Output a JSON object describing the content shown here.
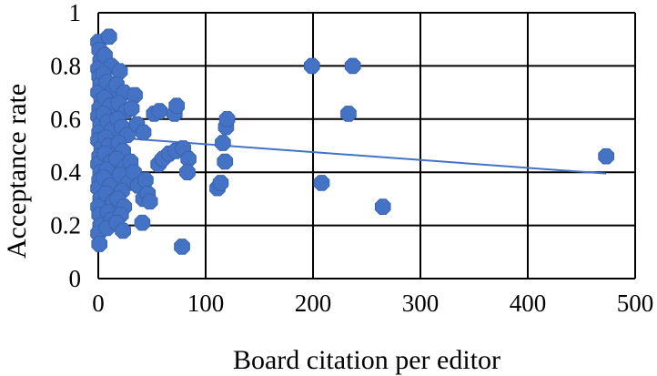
{
  "chart_data": {
    "type": "scatter",
    "title": "",
    "xlabel": "Board citation per editor",
    "ylabel": "Acceptance rate",
    "xlim": [
      0,
      500
    ],
    "ylim": [
      0,
      1
    ],
    "x_ticks": [
      "0",
      "100",
      "200",
      "300",
      "400",
      "500"
    ],
    "y_ticks": [
      "0",
      "0.2",
      "0.4",
      "0.6",
      "0.8",
      "1"
    ],
    "grid": true,
    "legend": "none",
    "marker_color": "#4472C4",
    "trendline": {
      "type": "linear",
      "x": [
        0,
        473
      ],
      "y": [
        0.535,
        0.395
      ],
      "color": "#4472C4"
    },
    "points": [
      {
        "x": 0,
        "y": 0.89
      },
      {
        "x": 1,
        "y": 0.86
      },
      {
        "x": 2,
        "y": 0.82
      },
      {
        "x": 0,
        "y": 0.79
      },
      {
        "x": 1,
        "y": 0.76
      },
      {
        "x": 2,
        "y": 0.73
      },
      {
        "x": 0,
        "y": 0.7
      },
      {
        "x": 3,
        "y": 0.67
      },
      {
        "x": 1,
        "y": 0.64
      },
      {
        "x": 0,
        "y": 0.61
      },
      {
        "x": 2,
        "y": 0.58
      },
      {
        "x": 1,
        "y": 0.55
      },
      {
        "x": 0,
        "y": 0.52
      },
      {
        "x": 3,
        "y": 0.49
      },
      {
        "x": 1,
        "y": 0.46
      },
      {
        "x": 0,
        "y": 0.43
      },
      {
        "x": 2,
        "y": 0.4
      },
      {
        "x": 1,
        "y": 0.37
      },
      {
        "x": 0,
        "y": 0.34
      },
      {
        "x": 2,
        "y": 0.3
      },
      {
        "x": 0,
        "y": 0.27
      },
      {
        "x": 1,
        "y": 0.24
      },
      {
        "x": 2,
        "y": 0.2
      },
      {
        "x": 0,
        "y": 0.17
      },
      {
        "x": 1,
        "y": 0.13
      },
      {
        "x": 10,
        "y": 0.91
      },
      {
        "x": 6,
        "y": 0.84
      },
      {
        "x": 12,
        "y": 0.8
      },
      {
        "x": 5,
        "y": 0.77
      },
      {
        "x": 8,
        "y": 0.74
      },
      {
        "x": 14,
        "y": 0.71
      },
      {
        "x": 6,
        "y": 0.68
      },
      {
        "x": 11,
        "y": 0.65
      },
      {
        "x": 5,
        "y": 0.62
      },
      {
        "x": 9,
        "y": 0.59
      },
      {
        "x": 13,
        "y": 0.56
      },
      {
        "x": 7,
        "y": 0.53
      },
      {
        "x": 10,
        "y": 0.5
      },
      {
        "x": 6,
        "y": 0.47
      },
      {
        "x": 12,
        "y": 0.44
      },
      {
        "x": 8,
        "y": 0.41
      },
      {
        "x": 5,
        "y": 0.38
      },
      {
        "x": 11,
        "y": 0.35
      },
      {
        "x": 7,
        "y": 0.32
      },
      {
        "x": 14,
        "y": 0.29
      },
      {
        "x": 9,
        "y": 0.25
      },
      {
        "x": 12,
        "y": 0.22
      },
      {
        "x": 8,
        "y": 0.19
      },
      {
        "x": 20,
        "y": 0.78
      },
      {
        "x": 17,
        "y": 0.73
      },
      {
        "x": 24,
        "y": 0.7
      },
      {
        "x": 19,
        "y": 0.66
      },
      {
        "x": 26,
        "y": 0.63
      },
      {
        "x": 18,
        "y": 0.6
      },
      {
        "x": 22,
        "y": 0.57
      },
      {
        "x": 27,
        "y": 0.54
      },
      {
        "x": 19,
        "y": 0.51
      },
      {
        "x": 23,
        "y": 0.48
      },
      {
        "x": 17,
        "y": 0.45
      },
      {
        "x": 25,
        "y": 0.42
      },
      {
        "x": 20,
        "y": 0.39
      },
      {
        "x": 28,
        "y": 0.36
      },
      {
        "x": 22,
        "y": 0.33
      },
      {
        "x": 18,
        "y": 0.3
      },
      {
        "x": 24,
        "y": 0.27
      },
      {
        "x": 21,
        "y": 0.24
      },
      {
        "x": 17,
        "y": 0.21
      },
      {
        "x": 23,
        "y": 0.18
      },
      {
        "x": 34,
        "y": 0.69
      },
      {
        "x": 31,
        "y": 0.64
      },
      {
        "x": 36,
        "y": 0.58
      },
      {
        "x": 30,
        "y": 0.44
      },
      {
        "x": 33,
        "y": 0.4
      },
      {
        "x": 37,
        "y": 0.35
      },
      {
        "x": 42,
        "y": 0.55
      },
      {
        "x": 44,
        "y": 0.37
      },
      {
        "x": 42,
        "y": 0.3
      },
      {
        "x": 46,
        "y": 0.32
      },
      {
        "x": 48,
        "y": 0.29
      },
      {
        "x": 41,
        "y": 0.21
      },
      {
        "x": 52,
        "y": 0.62
      },
      {
        "x": 57,
        "y": 0.63
      },
      {
        "x": 56,
        "y": 0.43
      },
      {
        "x": 60,
        "y": 0.45
      },
      {
        "x": 66,
        "y": 0.47
      },
      {
        "x": 71,
        "y": 0.62
      },
      {
        "x": 73,
        "y": 0.65
      },
      {
        "x": 72,
        "y": 0.48
      },
      {
        "x": 79,
        "y": 0.49
      },
      {
        "x": 84,
        "y": 0.45
      },
      {
        "x": 83,
        "y": 0.4
      },
      {
        "x": 78,
        "y": 0.12
      },
      {
        "x": 111,
        "y": 0.34
      },
      {
        "x": 114,
        "y": 0.36
      },
      {
        "x": 116,
        "y": 0.51
      },
      {
        "x": 118,
        "y": 0.44
      },
      {
        "x": 119,
        "y": 0.57
      },
      {
        "x": 120,
        "y": 0.6
      },
      {
        "x": 199,
        "y": 0.8
      },
      {
        "x": 208,
        "y": 0.36
      },
      {
        "x": 233,
        "y": 0.62
      },
      {
        "x": 237,
        "y": 0.8
      },
      {
        "x": 265,
        "y": 0.27
      },
      {
        "x": 473,
        "y": 0.46
      }
    ]
  }
}
